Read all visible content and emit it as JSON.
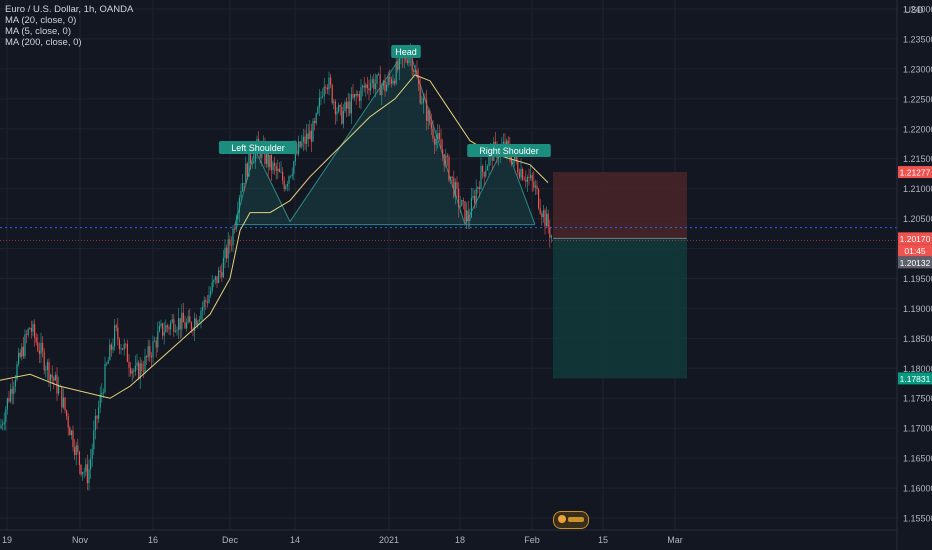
{
  "legend": {
    "symbol": "Euro / U.S. Dollar, 1h, OANDA",
    "ma1": "MA (20, close, 0)",
    "ma2": "MA (5, close, 0)",
    "ma3": "MA (200, close, 0)"
  },
  "colors": {
    "background": "#131722",
    "grid": "#1f2330",
    "candle_up": "#26a69a",
    "candle_down": "#ef5350",
    "ma": "#e6d27a",
    "pattern_fill": "#1e5a5a",
    "stop_zone": "#4a2428",
    "target_zone": "#12383a",
    "label_bg": "#1b8e80"
  },
  "chart_data": {
    "type": "candlestick",
    "currency": "USD",
    "y_ticks": [
      "1.24000",
      "1.23500",
      "1.23000",
      "1.22500",
      "1.22000",
      "1.21500",
      "1.21000",
      "1.20500",
      "1.20000",
      "1.19500",
      "1.19000",
      "1.18500",
      "1.18000",
      "1.17500",
      "1.17000",
      "1.16500",
      "1.16000",
      "1.15500"
    ],
    "x_ticks": [
      "19",
      "Nov",
      "16",
      "Dec",
      "14",
      "2021",
      "18",
      "Feb",
      "15",
      "Mar"
    ],
    "ylim": [
      1.153,
      1.2415
    ],
    "price_path": [
      [
        0,
        1.17
      ],
      [
        15,
        1.179
      ],
      [
        30,
        1.187
      ],
      [
        45,
        1.181
      ],
      [
        60,
        1.176
      ],
      [
        70,
        1.17
      ],
      [
        80,
        1.164
      ],
      [
        88,
        1.162
      ],
      [
        95,
        1.17
      ],
      [
        105,
        1.179
      ],
      [
        115,
        1.186
      ],
      [
        125,
        1.183
      ],
      [
        135,
        1.179
      ],
      [
        145,
        1.181
      ],
      [
        160,
        1.186
      ],
      [
        175,
        1.188
      ],
      [
        190,
        1.187
      ],
      [
        205,
        1.191
      ],
      [
        220,
        1.196
      ],
      [
        232,
        1.202
      ],
      [
        240,
        1.21
      ],
      [
        250,
        1.215
      ],
      [
        258,
        1.217
      ],
      [
        270,
        1.214
      ],
      [
        285,
        1.211
      ],
      [
        300,
        1.217
      ],
      [
        315,
        1.22
      ],
      [
        325,
        1.229
      ],
      [
        340,
        1.222
      ],
      [
        355,
        1.225
      ],
      [
        370,
        1.228
      ],
      [
        385,
        1.227
      ],
      [
        398,
        1.23
      ],
      [
        410,
        1.233
      ],
      [
        420,
        1.226
      ],
      [
        432,
        1.22
      ],
      [
        445,
        1.215
      ],
      [
        458,
        1.208
      ],
      [
        468,
        1.205
      ],
      [
        480,
        1.212
      ],
      [
        492,
        1.216
      ],
      [
        505,
        1.217
      ],
      [
        517,
        1.214
      ],
      [
        527,
        1.212
      ],
      [
        535,
        1.21
      ],
      [
        545,
        1.205
      ],
      [
        553,
        1.2015
      ]
    ],
    "ma_path": [
      [
        0,
        1.178
      ],
      [
        30,
        1.179
      ],
      [
        60,
        1.177
      ],
      [
        85,
        1.176
      ],
      [
        110,
        1.175
      ],
      [
        130,
        1.177
      ],
      [
        150,
        1.18
      ],
      [
        170,
        1.183
      ],
      [
        190,
        1.186
      ],
      [
        210,
        1.189
      ],
      [
        230,
        1.195
      ],
      [
        240,
        1.203
      ],
      [
        250,
        1.206
      ],
      [
        270,
        1.206
      ],
      [
        290,
        1.208
      ],
      [
        310,
        1.212
      ],
      [
        340,
        1.217
      ],
      [
        370,
        1.222
      ],
      [
        395,
        1.225
      ],
      [
        415,
        1.229
      ],
      [
        430,
        1.228
      ],
      [
        450,
        1.223
      ],
      [
        470,
        1.218
      ],
      [
        490,
        1.216
      ],
      [
        510,
        1.215
      ],
      [
        530,
        1.214
      ],
      [
        548,
        1.211
      ]
    ],
    "pattern": {
      "labels": [
        "Left Shoulder",
        "Head",
        "Right Shoulder"
      ],
      "points": [
        [
          235,
          1.204
        ],
        [
          255,
          1.2165
        ],
        [
          290,
          1.2045
        ],
        [
          408,
          1.2338
        ],
        [
          465,
          1.204
        ],
        [
          505,
          1.2175
        ],
        [
          535,
          1.204
        ]
      ],
      "neckline": [
        1.2045,
        1.2038
      ]
    },
    "position": {
      "x_start": 553,
      "x_end": 687,
      "stop": 1.21277,
      "entry": 1.2017,
      "target": 1.17831
    },
    "current_price": 1.20132,
    "price_labels": [
      {
        "text": "1.21277",
        "value": 1.21277,
        "color": "#ef5350"
      },
      {
        "text": "1.20170",
        "value": 1.2017,
        "color": "#ef5350"
      },
      {
        "text": "01:45",
        "value": 1.2015,
        "color": "#ef5350"
      },
      {
        "text": "1.20132",
        "value": 1.20132,
        "color": "#5d606b"
      },
      {
        "text": "1.17831",
        "value": 1.17831,
        "color": "#089981"
      }
    ],
    "dotted_line": 1.2035
  }
}
